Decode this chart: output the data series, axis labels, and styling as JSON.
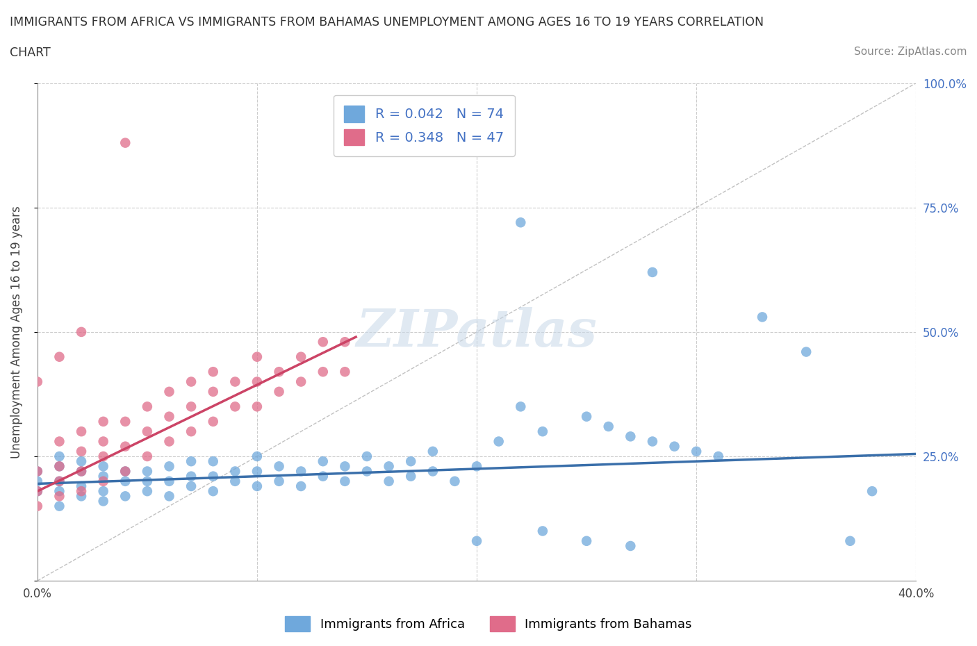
{
  "title_line1": "IMMIGRANTS FROM AFRICA VS IMMIGRANTS FROM BAHAMAS UNEMPLOYMENT AMONG AGES 16 TO 19 YEARS CORRELATION",
  "title_line2": "CHART",
  "source": "Source: ZipAtlas.com",
  "ylabel": "Unemployment Among Ages 16 to 19 years",
  "xlim": [
    0.0,
    0.4
  ],
  "ylim": [
    0.0,
    1.0
  ],
  "color_africa": "#6fa8dc",
  "color_bahamas": "#e06c8a",
  "trendline_africa_color": "#3a6faa",
  "trendline_bahamas_color": "#cc4466",
  "R_africa": 0.042,
  "N_africa": 74,
  "R_bahamas": 0.348,
  "N_bahamas": 47,
  "legend_label_africa": "Immigrants from Africa",
  "legend_label_bahamas": "Immigrants from Bahamas",
  "watermark": "ZIPatlas",
  "background_color": "#ffffff",
  "grid_color": "#cccccc",
  "africa_x": [
    0.0,
    0.0,
    0.0,
    0.01,
    0.01,
    0.01,
    0.01,
    0.01,
    0.02,
    0.02,
    0.02,
    0.02,
    0.03,
    0.03,
    0.03,
    0.03,
    0.04,
    0.04,
    0.04,
    0.05,
    0.05,
    0.05,
    0.06,
    0.06,
    0.06,
    0.07,
    0.07,
    0.07,
    0.08,
    0.08,
    0.08,
    0.09,
    0.09,
    0.1,
    0.1,
    0.1,
    0.11,
    0.11,
    0.12,
    0.12,
    0.13,
    0.13,
    0.14,
    0.14,
    0.15,
    0.15,
    0.16,
    0.16,
    0.17,
    0.17,
    0.18,
    0.18,
    0.19,
    0.2,
    0.21,
    0.22,
    0.23,
    0.25,
    0.26,
    0.27,
    0.28,
    0.29,
    0.3,
    0.31,
    0.22,
    0.28,
    0.33,
    0.35,
    0.37,
    0.38,
    0.2,
    0.23,
    0.25,
    0.27
  ],
  "africa_y": [
    0.18,
    0.2,
    0.22,
    0.15,
    0.18,
    0.2,
    0.23,
    0.25,
    0.17,
    0.19,
    0.22,
    0.24,
    0.16,
    0.18,
    0.21,
    0.23,
    0.17,
    0.2,
    0.22,
    0.18,
    0.2,
    0.22,
    0.17,
    0.2,
    0.23,
    0.19,
    0.21,
    0.24,
    0.18,
    0.21,
    0.24,
    0.2,
    0.22,
    0.19,
    0.22,
    0.25,
    0.2,
    0.23,
    0.19,
    0.22,
    0.21,
    0.24,
    0.2,
    0.23,
    0.22,
    0.25,
    0.2,
    0.23,
    0.21,
    0.24,
    0.22,
    0.26,
    0.2,
    0.23,
    0.28,
    0.35,
    0.3,
    0.33,
    0.31,
    0.29,
    0.28,
    0.27,
    0.26,
    0.25,
    0.72,
    0.62,
    0.53,
    0.46,
    0.08,
    0.18,
    0.08,
    0.1,
    0.08,
    0.07
  ],
  "bahamas_x": [
    0.0,
    0.0,
    0.0,
    0.01,
    0.01,
    0.01,
    0.01,
    0.02,
    0.02,
    0.02,
    0.02,
    0.03,
    0.03,
    0.03,
    0.03,
    0.04,
    0.04,
    0.04,
    0.05,
    0.05,
    0.05,
    0.06,
    0.06,
    0.06,
    0.07,
    0.07,
    0.07,
    0.08,
    0.08,
    0.08,
    0.09,
    0.09,
    0.1,
    0.1,
    0.1,
    0.11,
    0.11,
    0.12,
    0.12,
    0.13,
    0.13,
    0.14,
    0.14,
    0.04,
    0.02,
    0.01,
    0.0
  ],
  "bahamas_y": [
    0.15,
    0.18,
    0.22,
    0.17,
    0.2,
    0.23,
    0.28,
    0.18,
    0.22,
    0.26,
    0.3,
    0.2,
    0.25,
    0.28,
    0.32,
    0.22,
    0.27,
    0.32,
    0.25,
    0.3,
    0.35,
    0.28,
    0.33,
    0.38,
    0.3,
    0.35,
    0.4,
    0.32,
    0.38,
    0.42,
    0.35,
    0.4,
    0.35,
    0.4,
    0.45,
    0.38,
    0.42,
    0.4,
    0.45,
    0.42,
    0.48,
    0.42,
    0.48,
    0.88,
    0.5,
    0.45,
    0.4
  ],
  "africa_trend_x": [
    0.0,
    0.4
  ],
  "africa_trend_y": [
    0.195,
    0.255
  ],
  "bahamas_trend_x": [
    0.0,
    0.145
  ],
  "bahamas_trend_y": [
    0.18,
    0.49
  ]
}
